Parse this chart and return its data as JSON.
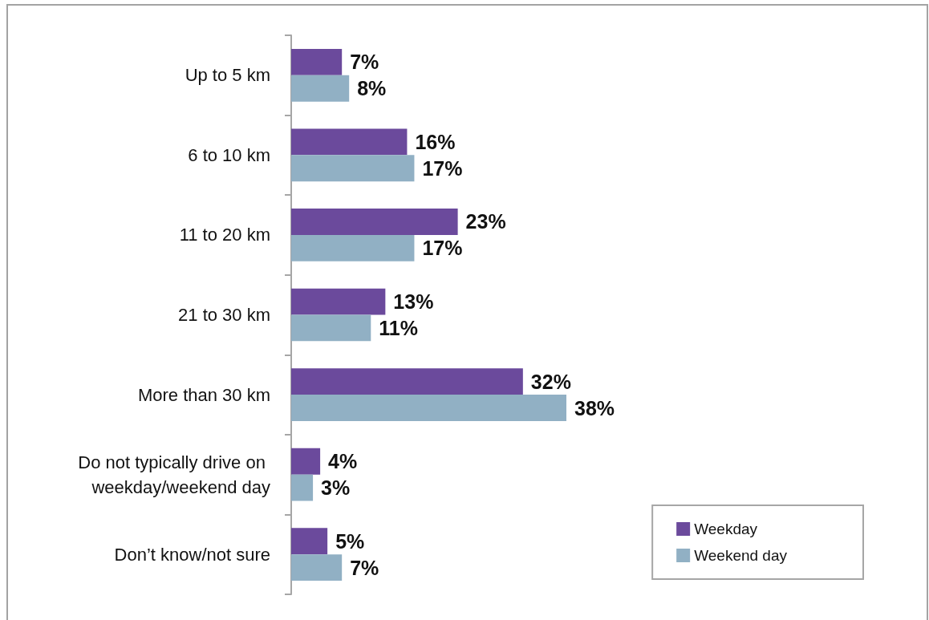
{
  "chart_data": {
    "type": "bar",
    "orientation": "horizontal",
    "categories": [
      "Up to 5 km",
      "6 to 10 km",
      "11 to 20 km",
      "21 to 30 km",
      "More than 30 km",
      "Do not typically drive on weekday/weekend day",
      "Don’t know/not sure"
    ],
    "series": [
      {
        "name": "Weekday",
        "color": "#6b4a9c",
        "values": [
          7,
          16,
          23,
          13,
          32,
          4,
          5
        ],
        "value_labels": [
          "7%",
          "16%",
          "23%",
          "13%",
          "32%",
          "4%",
          "5%"
        ]
      },
      {
        "name": "Weekend day",
        "color": "#91b0c4",
        "values": [
          8,
          17,
          17,
          11,
          38,
          3,
          7
        ],
        "value_labels": [
          "8%",
          "17%",
          "17%",
          "11%",
          "38%",
          "3%",
          "7%"
        ]
      }
    ],
    "legend": "bottom right",
    "tick_labels": "y"
  }
}
